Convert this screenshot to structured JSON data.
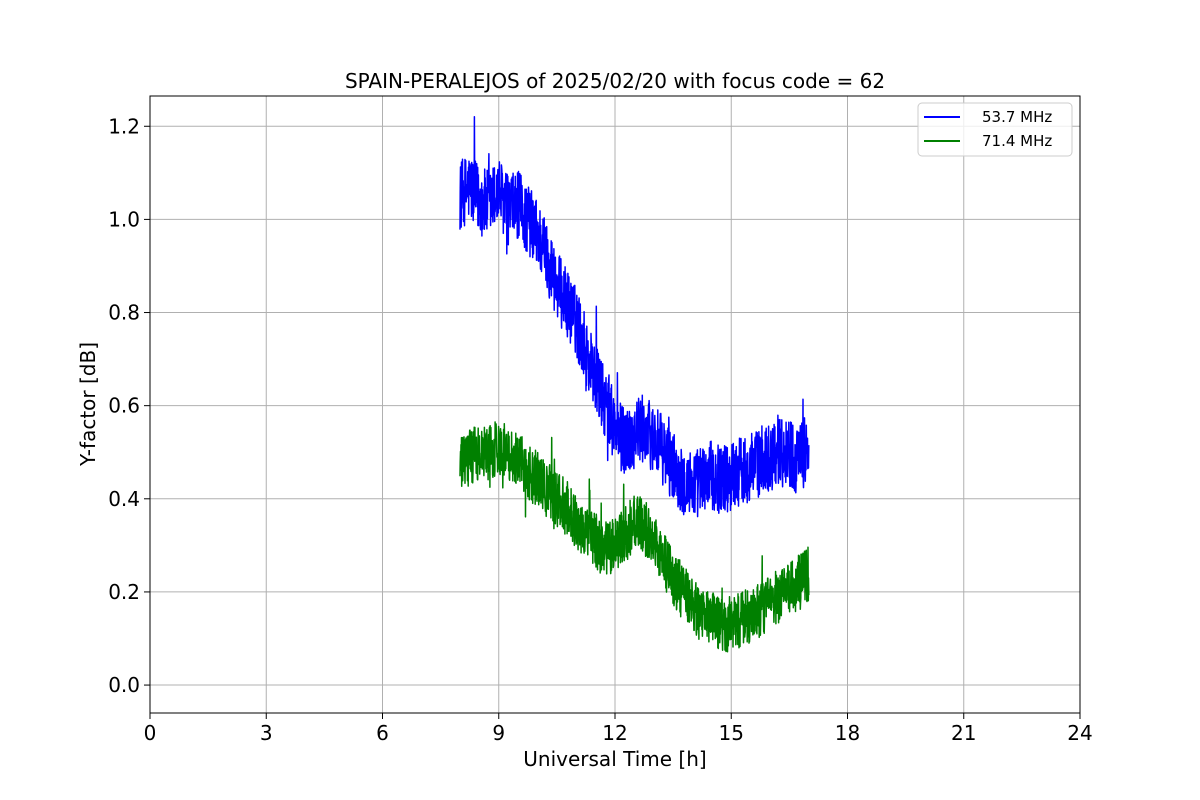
{
  "chart_data": {
    "type": "line",
    "title": "SPAIN-PERALEJOS of 2025/02/20 with focus code = 62",
    "xlabel": "Universal Time [h]",
    "ylabel": "Y-factor [dB]",
    "xlim": [
      0,
      24
    ],
    "ylim": [
      -0.06,
      1.265
    ],
    "xticks": [
      0,
      3,
      6,
      9,
      12,
      15,
      18,
      21,
      24
    ],
    "xtick_labels": [
      "0",
      "3",
      "6",
      "9",
      "12",
      "15",
      "18",
      "21",
      "24"
    ],
    "yticks": [
      0.0,
      0.2,
      0.4,
      0.6,
      0.8,
      1.0,
      1.2
    ],
    "ytick_labels": [
      "0.0",
      "0.2",
      "0.4",
      "0.6",
      "0.8",
      "1.0",
      "1.2"
    ],
    "grid": true,
    "legend_position": "top-right",
    "series": [
      {
        "name": "53.7 MHz",
        "color": "#0000ff",
        "x": [
          8.0,
          8.25,
          8.5,
          8.75,
          9.0,
          9.25,
          9.5,
          9.75,
          10.0,
          10.25,
          10.5,
          10.75,
          11.0,
          11.25,
          11.5,
          11.75,
          12.0,
          12.25,
          12.5,
          12.75,
          13.0,
          13.25,
          13.5,
          13.75,
          14.0,
          14.25,
          14.5,
          14.75,
          15.0,
          15.25,
          15.5,
          15.75,
          16.0,
          16.25,
          16.5,
          16.75,
          17.0
        ],
        "y": [
          1.05,
          1.07,
          1.04,
          1.03,
          1.06,
          1.02,
          1.03,
          1.0,
          0.97,
          0.92,
          0.86,
          0.82,
          0.78,
          0.72,
          0.66,
          0.6,
          0.55,
          0.52,
          0.54,
          0.55,
          0.53,
          0.5,
          0.47,
          0.44,
          0.43,
          0.44,
          0.45,
          0.44,
          0.45,
          0.46,
          0.47,
          0.48,
          0.49,
          0.51,
          0.5,
          0.48,
          0.52
        ],
        "noise": 0.075
      },
      {
        "name": "71.4 MHz",
        "color": "#008000",
        "x": [
          8.0,
          8.25,
          8.5,
          8.75,
          9.0,
          9.25,
          9.5,
          9.75,
          10.0,
          10.25,
          10.5,
          10.75,
          11.0,
          11.25,
          11.5,
          11.75,
          12.0,
          12.25,
          12.5,
          12.75,
          13.0,
          13.25,
          13.5,
          13.75,
          14.0,
          14.25,
          14.5,
          14.75,
          15.0,
          15.25,
          15.5,
          15.75,
          16.0,
          16.25,
          16.5,
          16.75,
          17.0
        ],
        "y": [
          0.47,
          0.49,
          0.5,
          0.5,
          0.51,
          0.5,
          0.49,
          0.46,
          0.44,
          0.42,
          0.4,
          0.38,
          0.35,
          0.33,
          0.31,
          0.29,
          0.3,
          0.32,
          0.35,
          0.34,
          0.31,
          0.27,
          0.23,
          0.2,
          0.17,
          0.15,
          0.14,
          0.13,
          0.13,
          0.14,
          0.15,
          0.16,
          0.18,
          0.19,
          0.2,
          0.22,
          0.24
        ],
        "noise": 0.06
      }
    ]
  }
}
